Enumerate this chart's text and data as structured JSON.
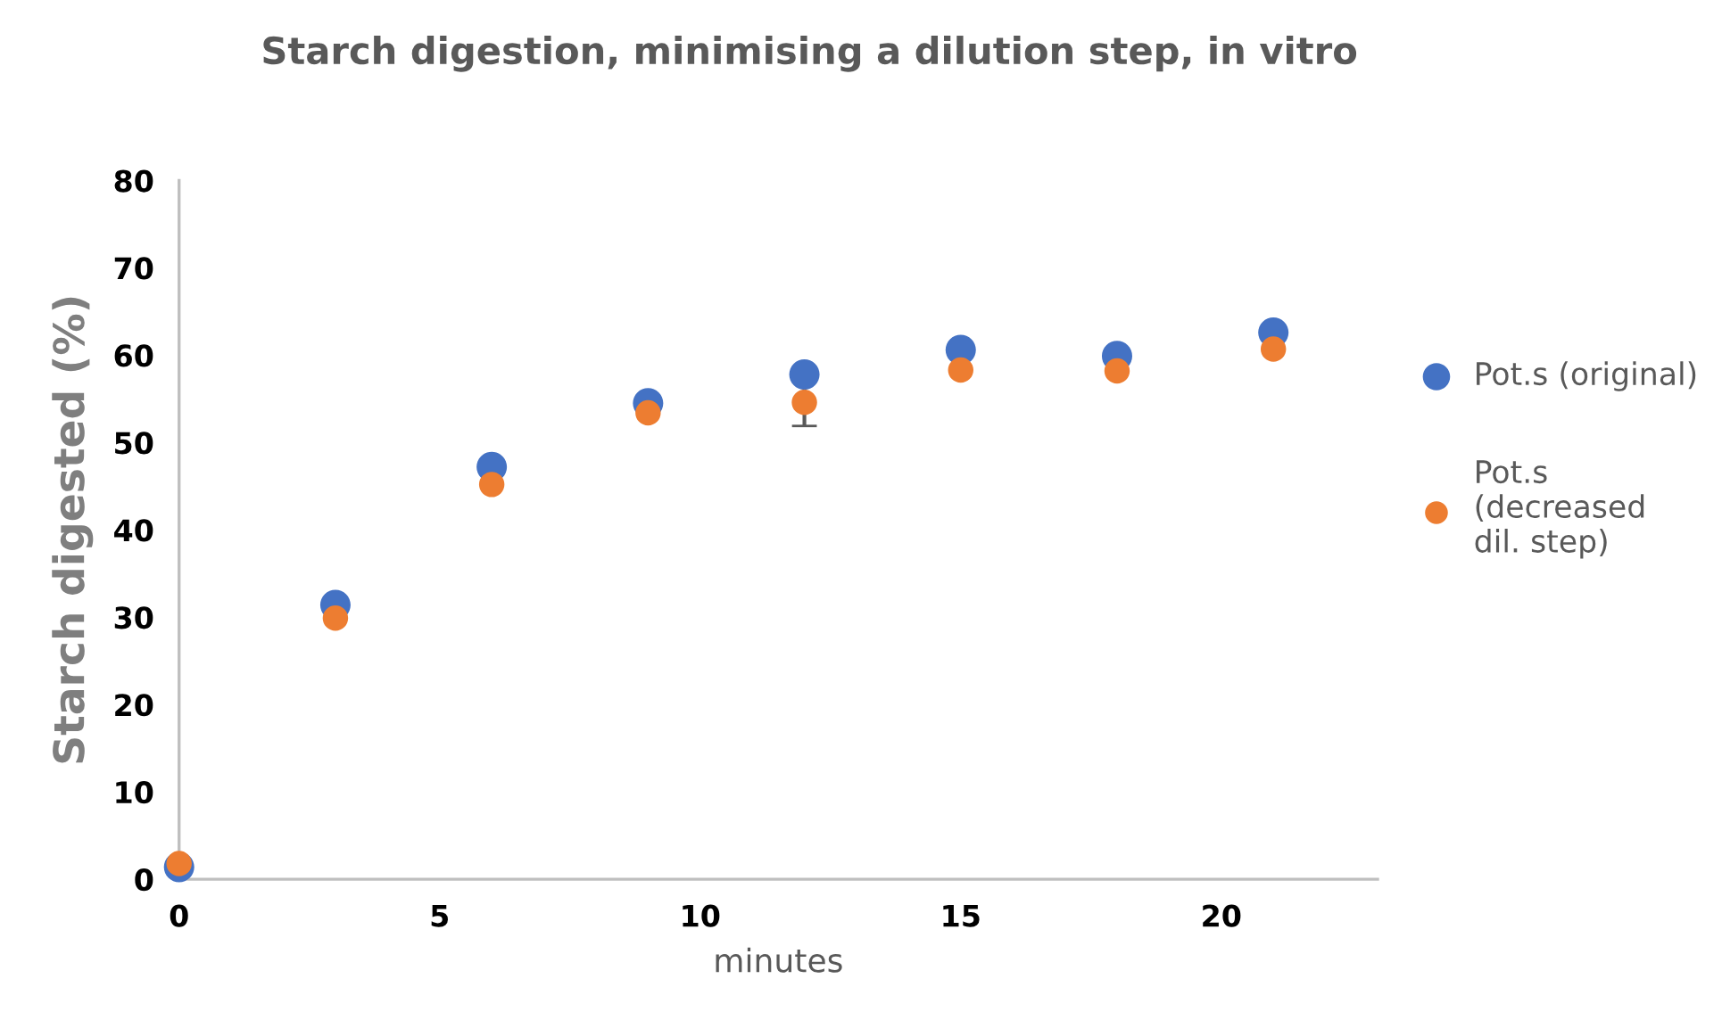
{
  "chart_data": {
    "type": "scatter",
    "title": "Starch digestion, minimising a dilution step, in vitro",
    "xlabel": "minutes",
    "ylabel": "Starch digested (%)",
    "x": [
      0,
      3,
      6,
      9,
      12,
      15,
      18,
      21
    ],
    "series": [
      {
        "name": "Pot.s (original)",
        "color": "#4472c4",
        "values": [
          1.4,
          31.4,
          47.2,
          54.5,
          57.8,
          60.6,
          59.9,
          62.6
        ]
      },
      {
        "name": "Pot.s (decreased dil. step)",
        "color": "#ed7d31",
        "values": [
          1.8,
          29.9,
          45.2,
          53.4,
          54.6,
          58.3,
          58.2,
          60.7
        ],
        "errors": [
          null,
          null,
          null,
          null,
          2.7,
          null,
          null,
          null
        ]
      }
    ],
    "xlim": [
      0,
      23
    ],
    "xticks": [
      0,
      5,
      10,
      15,
      20
    ],
    "ylim": [
      0,
      80
    ],
    "yticks": [
      0,
      10,
      20,
      30,
      40,
      50,
      60,
      70,
      80
    ],
    "marker": "circle",
    "grid": false,
    "legend": "right"
  }
}
